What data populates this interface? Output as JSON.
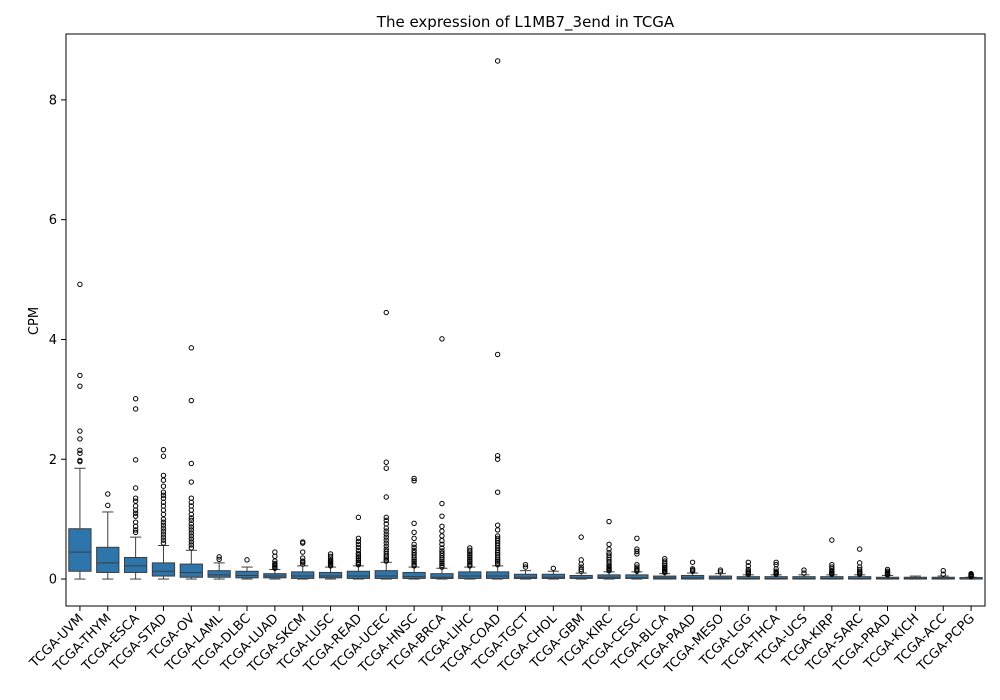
{
  "colors": {
    "box_fill": "#2e75ab",
    "box_edge": "#3d3d3d",
    "outlier_edge": "#000000"
  },
  "chart_data": {
    "type": "box",
    "title": "The expression of L1MB7_3end in TCGA",
    "xlabel": "",
    "ylabel": "CPM",
    "ylim": [
      -0.45,
      9.1
    ],
    "yticks": [
      0,
      2,
      4,
      6,
      8
    ],
    "categories": [
      "TCGA-UVM",
      "TCGA-THYM",
      "TCGA-ESCA",
      "TCGA-STAD",
      "TCGA-OV",
      "TCGA-LAML",
      "TCGA-DLBC",
      "TCGA-LUAD",
      "TCGA-SKCM",
      "TCGA-LUSC",
      "TCGA-READ",
      "TCGA-UCEC",
      "TCGA-HNSC",
      "TCGA-BRCA",
      "TCGA-LIHC",
      "TCGA-COAD",
      "TCGA-TGCT",
      "TCGA-CHOL",
      "TCGA-GBM",
      "TCGA-KIRC",
      "TCGA-CESC",
      "TCGA-BLCA",
      "TCGA-PAAD",
      "TCGA-MESO",
      "TCGA-LGG",
      "TCGA-THCA",
      "TCGA-UCS",
      "TCGA-KIRP",
      "TCGA-SARC",
      "TCGA-PRAD",
      "TCGA-KICH",
      "TCGA-ACC",
      "TCGA-PCPG"
    ],
    "boxes": [
      {
        "q1": 0.13,
        "median": 0.45,
        "q3": 0.84,
        "whislo": 0.0,
        "whishi": 1.85,
        "outliers": [
          4.92,
          3.4,
          3.22,
          2.47,
          2.34,
          2.15,
          2.1,
          1.98,
          1.96
        ]
      },
      {
        "q1": 0.11,
        "median": 0.27,
        "q3": 0.53,
        "whislo": 0.0,
        "whishi": 1.12,
        "outliers": [
          1.42,
          1.23
        ]
      },
      {
        "q1": 0.11,
        "median": 0.22,
        "q3": 0.36,
        "whislo": 0.0,
        "whishi": 0.7,
        "outliers": [
          3.01,
          2.84,
          1.99,
          1.52,
          1.35,
          1.3,
          1.22,
          1.15,
          1.1,
          1.05,
          0.95,
          0.88,
          0.82,
          0.78
        ]
      },
      {
        "q1": 0.05,
        "median": 0.13,
        "q3": 0.27,
        "whislo": 0.0,
        "whishi": 0.56,
        "outliers": [
          2.16,
          2.05,
          1.73,
          1.65,
          1.55,
          1.45,
          1.4,
          1.35,
          1.28,
          1.22,
          1.15,
          1.08,
          1.0,
          0.95,
          0.9,
          0.85,
          0.8,
          0.75,
          0.7,
          0.65,
          0.6
        ]
      },
      {
        "q1": 0.03,
        "median": 0.11,
        "q3": 0.25,
        "whislo": 0.0,
        "whishi": 0.48,
        "outliers": [
          3.86,
          2.98,
          1.93,
          1.62,
          1.35,
          1.28,
          1.22,
          1.15,
          1.08,
          1.02,
          0.98,
          0.92,
          0.87,
          0.82,
          0.77,
          0.72,
          0.67,
          0.62,
          0.57,
          0.52
        ]
      },
      {
        "q1": 0.03,
        "median": 0.07,
        "q3": 0.14,
        "whislo": 0.0,
        "whishi": 0.27,
        "outliers": [
          0.37,
          0.33
        ]
      },
      {
        "q1": 0.02,
        "median": 0.06,
        "q3": 0.13,
        "whislo": 0.0,
        "whishi": 0.2,
        "outliers": [
          0.32
        ]
      },
      {
        "q1": 0.02,
        "median": 0.05,
        "q3": 0.09,
        "whislo": 0.0,
        "whishi": 0.16,
        "outliers": [
          0.45,
          0.38,
          0.3,
          0.26,
          0.24,
          0.22,
          0.2,
          0.18
        ]
      },
      {
        "q1": 0.01,
        "median": 0.05,
        "q3": 0.12,
        "whislo": 0.0,
        "whishi": 0.22,
        "outliers": [
          0.62,
          0.6,
          0.45,
          0.35,
          0.3,
          0.28,
          0.25
        ]
      },
      {
        "q1": 0.02,
        "median": 0.05,
        "q3": 0.11,
        "whislo": 0.0,
        "whishi": 0.2,
        "outliers": [
          0.42,
          0.38,
          0.35,
          0.32,
          0.3,
          0.28,
          0.26,
          0.24,
          0.22
        ]
      },
      {
        "q1": 0.01,
        "median": 0.05,
        "q3": 0.13,
        "whislo": 0.0,
        "whishi": 0.22,
        "outliers": [
          1.03,
          0.68,
          0.63,
          0.58,
          0.53,
          0.48,
          0.43,
          0.4,
          0.37,
          0.34,
          0.31,
          0.28,
          0.26,
          0.24
        ]
      },
      {
        "q1": 0.01,
        "median": 0.05,
        "q3": 0.14,
        "whislo": 0.0,
        "whishi": 0.28,
        "outliers": [
          4.45,
          1.95,
          1.85,
          1.37,
          1.03,
          0.98,
          0.92,
          0.85,
          0.8,
          0.75,
          0.7,
          0.65,
          0.6,
          0.55,
          0.5,
          0.46,
          0.42,
          0.38,
          0.35,
          0.32,
          0.3
        ]
      },
      {
        "q1": 0.01,
        "median": 0.04,
        "q3": 0.11,
        "whislo": 0.0,
        "whishi": 0.2,
        "outliers": [
          1.68,
          1.64,
          0.93,
          0.78,
          0.68,
          0.58,
          0.53,
          0.48,
          0.44,
          0.4,
          0.36,
          0.33,
          0.3,
          0.27,
          0.24,
          0.22
        ]
      },
      {
        "q1": 0.01,
        "median": 0.03,
        "q3": 0.09,
        "whislo": 0.0,
        "whishi": 0.18,
        "outliers": [
          4.01,
          1.26,
          1.05,
          0.88,
          0.8,
          0.72,
          0.64,
          0.58,
          0.52,
          0.47,
          0.43,
          0.39,
          0.35,
          0.32,
          0.29,
          0.26,
          0.23,
          0.2
        ]
      },
      {
        "q1": 0.01,
        "median": 0.05,
        "q3": 0.12,
        "whislo": 0.0,
        "whishi": 0.2,
        "outliers": [
          0.52,
          0.48,
          0.45,
          0.42,
          0.39,
          0.36,
          0.33,
          0.3,
          0.27,
          0.24,
          0.22
        ]
      },
      {
        "q1": 0.01,
        "median": 0.05,
        "q3": 0.12,
        "whislo": 0.0,
        "whishi": 0.22,
        "outliers": [
          8.65,
          3.75,
          2.06,
          2.0,
          1.45,
          0.9,
          0.82,
          0.72,
          0.68,
          0.64,
          0.6,
          0.56,
          0.52,
          0.48,
          0.44,
          0.4,
          0.36,
          0.33,
          0.3,
          0.27,
          0.24
        ]
      },
      {
        "q1": 0.01,
        "median": 0.03,
        "q3": 0.08,
        "whislo": 0.0,
        "whishi": 0.14,
        "outliers": [
          0.24,
          0.2
        ]
      },
      {
        "q1": 0.01,
        "median": 0.03,
        "q3": 0.08,
        "whislo": 0.0,
        "whishi": 0.13,
        "outliers": [
          0.18
        ]
      },
      {
        "q1": 0.01,
        "median": 0.02,
        "q3": 0.06,
        "whislo": 0.0,
        "whishi": 0.1,
        "outliers": [
          0.7,
          0.32,
          0.25,
          0.2,
          0.16,
          0.13
        ]
      },
      {
        "q1": 0.01,
        "median": 0.03,
        "q3": 0.07,
        "whislo": 0.0,
        "whishi": 0.12,
        "outliers": [
          0.96,
          0.58,
          0.5,
          0.44,
          0.4,
          0.36,
          0.32,
          0.28,
          0.25,
          0.22,
          0.2,
          0.18,
          0.16,
          0.14
        ]
      },
      {
        "q1": 0.01,
        "median": 0.02,
        "q3": 0.07,
        "whislo": 0.0,
        "whishi": 0.12,
        "outliers": [
          0.68,
          0.5,
          0.46,
          0.42,
          0.24,
          0.2,
          0.17,
          0.15,
          0.13
        ]
      },
      {
        "q1": 0.0,
        "median": 0.02,
        "q3": 0.05,
        "whislo": 0.0,
        "whishi": 0.09,
        "outliers": [
          0.34,
          0.3,
          0.26,
          0.23,
          0.2,
          0.18,
          0.16,
          0.14,
          0.12,
          0.11
        ]
      },
      {
        "q1": 0.0,
        "median": 0.02,
        "q3": 0.06,
        "whislo": 0.0,
        "whishi": 0.1,
        "outliers": [
          0.28,
          0.17,
          0.15,
          0.13
        ]
      },
      {
        "q1": 0.0,
        "median": 0.02,
        "q3": 0.05,
        "whislo": 0.0,
        "whishi": 0.09,
        "outliers": [
          0.15,
          0.12
        ]
      },
      {
        "q1": 0.0,
        "median": 0.01,
        "q3": 0.04,
        "whislo": 0.0,
        "whishi": 0.07,
        "outliers": [
          0.28,
          0.22,
          0.16,
          0.13,
          0.11,
          0.09,
          0.08
        ]
      },
      {
        "q1": 0.0,
        "median": 0.01,
        "q3": 0.04,
        "whislo": 0.0,
        "whishi": 0.07,
        "outliers": [
          0.28,
          0.24,
          0.17,
          0.13,
          0.11,
          0.09,
          0.08
        ]
      },
      {
        "q1": 0.0,
        "median": 0.01,
        "q3": 0.04,
        "whislo": 0.0,
        "whishi": 0.07,
        "outliers": [
          0.15,
          0.1
        ]
      },
      {
        "q1": 0.0,
        "median": 0.01,
        "q3": 0.04,
        "whislo": 0.0,
        "whishi": 0.07,
        "outliers": [
          0.65,
          0.24,
          0.2,
          0.17,
          0.14,
          0.12,
          0.1,
          0.09,
          0.08
        ]
      },
      {
        "q1": 0.0,
        "median": 0.01,
        "q3": 0.04,
        "whislo": 0.0,
        "whishi": 0.07,
        "outliers": [
          0.5,
          0.27,
          0.2,
          0.16,
          0.13,
          0.11,
          0.09,
          0.08
        ]
      },
      {
        "q1": 0.0,
        "median": 0.01,
        "q3": 0.03,
        "whislo": 0.0,
        "whishi": 0.06,
        "outliers": [
          0.16,
          0.13,
          0.11,
          0.09,
          0.08,
          0.07
        ]
      },
      {
        "q1": 0.0,
        "median": 0.01,
        "q3": 0.03,
        "whislo": 0.0,
        "whishi": 0.05,
        "outliers": []
      },
      {
        "q1": 0.0,
        "median": 0.01,
        "q3": 0.03,
        "whislo": 0.0,
        "whishi": 0.05,
        "outliers": [
          0.14,
          0.08
        ]
      },
      {
        "q1": 0.0,
        "median": 0.0,
        "q3": 0.02,
        "whislo": 0.0,
        "whishi": 0.03,
        "outliers": [
          0.09,
          0.08,
          0.07,
          0.06,
          0.05,
          0.04
        ]
      }
    ]
  }
}
